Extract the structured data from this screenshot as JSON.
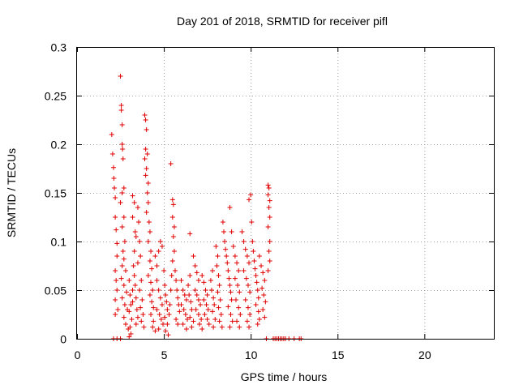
{
  "chart_data": {
    "type": "scatter",
    "title": "Day 201 of 2018, SRMTID for receiver pifl",
    "xlabel": "GPS time / hours",
    "ylabel": "SRMTID / TECUs",
    "xlim": [
      0,
      24
    ],
    "ylim": [
      0,
      0.3
    ],
    "xticks": [
      "0",
      "5",
      "10",
      "15",
      "20"
    ],
    "yticks": [
      "0",
      "0.05",
      "0.1",
      "0.15",
      "0.2",
      "0.25",
      "0.3"
    ],
    "grid": true,
    "marker": "plus",
    "color": "#e00000",
    "series": [
      {
        "points": [
          [
            2.1,
            0.0
          ],
          [
            2.3,
            0.0
          ],
          [
            2.5,
            0.0
          ],
          [
            10.9,
            0.0
          ],
          [
            11.3,
            0.0
          ],
          [
            11.4,
            0.0
          ],
          [
            11.5,
            0.0
          ],
          [
            11.6,
            0.0
          ],
          [
            11.7,
            0.0
          ],
          [
            11.8,
            0.0
          ],
          [
            11.9,
            0.0
          ],
          [
            12.0,
            0.0
          ],
          [
            12.2,
            0.0
          ],
          [
            12.5,
            0.0
          ],
          [
            12.8,
            0.0
          ],
          [
            12.9,
            0.0
          ],
          [
            2.0,
            0.21
          ],
          [
            2.05,
            0.19
          ],
          [
            2.1,
            0.176
          ],
          [
            2.12,
            0.165
          ],
          [
            2.15,
            0.155
          ],
          [
            2.2,
            0.145
          ],
          [
            2.2,
            0.125
          ],
          [
            2.25,
            0.112
          ],
          [
            2.3,
            0.098
          ],
          [
            2.3,
            0.085
          ],
          [
            2.2,
            0.07
          ],
          [
            2.25,
            0.06
          ],
          [
            2.3,
            0.05
          ],
          [
            2.2,
            0.04
          ],
          [
            2.35,
            0.03
          ],
          [
            2.2,
            0.025
          ],
          [
            2.5,
            0.27
          ],
          [
            2.55,
            0.24
          ],
          [
            2.55,
            0.235
          ],
          [
            2.6,
            0.22
          ],
          [
            2.6,
            0.2
          ],
          [
            2.62,
            0.195
          ],
          [
            2.65,
            0.185
          ],
          [
            2.7,
            0.155
          ],
          [
            2.6,
            0.15
          ],
          [
            2.5,
            0.14
          ],
          [
            2.7,
            0.125
          ],
          [
            2.6,
            0.115
          ],
          [
            2.75,
            0.1
          ],
          [
            2.65,
            0.09
          ],
          [
            2.7,
            0.082
          ],
          [
            2.6,
            0.075
          ],
          [
            2.8,
            0.07
          ],
          [
            2.55,
            0.062
          ],
          [
            2.7,
            0.055
          ],
          [
            2.85,
            0.048
          ],
          [
            2.6,
            0.042
          ],
          [
            2.75,
            0.035
          ],
          [
            2.9,
            0.03
          ],
          [
            2.7,
            0.022
          ],
          [
            2.8,
            0.015
          ],
          [
            2.95,
            0.01
          ],
          [
            3.0,
            0.06
          ],
          [
            3.05,
            0.045
          ],
          [
            3.1,
            0.035
          ],
          [
            3.0,
            0.028
          ],
          [
            3.15,
            0.02
          ],
          [
            3.05,
            0.012
          ],
          [
            3.1,
            0.005
          ],
          [
            3.0,
            0.002
          ],
          [
            3.2,
            0.05
          ],
          [
            3.2,
            0.038
          ],
          [
            3.25,
            0.075
          ],
          [
            3.3,
            0.09
          ],
          [
            3.35,
            0.11
          ],
          [
            3.2,
            0.125
          ],
          [
            3.4,
            0.105
          ],
          [
            3.3,
            0.065
          ],
          [
            3.35,
            0.055
          ],
          [
            3.4,
            0.042
          ],
          [
            3.45,
            0.03
          ],
          [
            3.5,
            0.022
          ],
          [
            3.4,
            0.015
          ],
          [
            3.2,
            0.147
          ],
          [
            3.3,
            0.14
          ],
          [
            3.5,
            0.135
          ],
          [
            3.55,
            0.12
          ],
          [
            3.6,
            0.1
          ],
          [
            3.65,
            0.085
          ],
          [
            3.5,
            0.078
          ],
          [
            3.7,
            0.06
          ],
          [
            3.6,
            0.05
          ],
          [
            3.75,
            0.04
          ],
          [
            3.65,
            0.032
          ],
          [
            3.8,
            0.025
          ],
          [
            3.7,
            0.018
          ],
          [
            3.85,
            0.012
          ],
          [
            3.9,
            0.23
          ],
          [
            3.95,
            0.225
          ],
          [
            4.0,
            0.215
          ],
          [
            3.95,
            0.195
          ],
          [
            4.05,
            0.19
          ],
          [
            3.9,
            0.185
          ],
          [
            4.0,
            0.175
          ],
          [
            3.95,
            0.168
          ],
          [
            4.1,
            0.16
          ],
          [
            4.05,
            0.15
          ],
          [
            4.1,
            0.14
          ],
          [
            4.0,
            0.13
          ],
          [
            4.15,
            0.12
          ],
          [
            4.2,
            0.11
          ],
          [
            4.1,
            0.1
          ],
          [
            4.25,
            0.09
          ],
          [
            4.2,
            0.08
          ],
          [
            4.3,
            0.072
          ],
          [
            4.1,
            0.065
          ],
          [
            4.25,
            0.058
          ],
          [
            4.35,
            0.05
          ],
          [
            4.2,
            0.045
          ],
          [
            4.3,
            0.038
          ],
          [
            4.4,
            0.032
          ],
          [
            4.25,
            0.025
          ],
          [
            4.4,
            0.018
          ],
          [
            4.35,
            0.012
          ],
          [
            4.5,
            0.008
          ],
          [
            4.5,
            0.085
          ],
          [
            4.6,
            0.075
          ],
          [
            4.7,
            0.09
          ],
          [
            4.8,
            0.1
          ],
          [
            4.9,
            0.095
          ],
          [
            4.6,
            0.06
          ],
          [
            4.7,
            0.05
          ],
          [
            4.8,
            0.042
          ],
          [
            4.9,
            0.035
          ],
          [
            4.6,
            0.03
          ],
          [
            4.75,
            0.025
          ],
          [
            4.85,
            0.02
          ],
          [
            4.95,
            0.015
          ],
          [
            4.7,
            0.01
          ],
          [
            5.0,
            0.07
          ],
          [
            5.05,
            0.055
          ],
          [
            5.1,
            0.045
          ],
          [
            5.15,
            0.038
          ],
          [
            5.2,
            0.03
          ],
          [
            5.05,
            0.022
          ],
          [
            5.2,
            0.015
          ],
          [
            5.1,
            0.008
          ],
          [
            5.25,
            0.004
          ],
          [
            5.3,
            0.025
          ],
          [
            5.35,
            0.035
          ],
          [
            5.4,
            0.05
          ],
          [
            5.45,
            0.065
          ],
          [
            5.5,
            0.08
          ],
          [
            5.4,
            0.18
          ],
          [
            5.5,
            0.143
          ],
          [
            5.55,
            0.138
          ],
          [
            5.5,
            0.125
          ],
          [
            5.6,
            0.115
          ],
          [
            5.55,
            0.105
          ],
          [
            5.6,
            0.09
          ],
          [
            5.65,
            0.07
          ],
          [
            5.7,
            0.06
          ],
          [
            5.75,
            0.05
          ],
          [
            5.8,
            0.042
          ],
          [
            5.85,
            0.035
          ],
          [
            5.9,
            0.028
          ],
          [
            5.7,
            0.02
          ],
          [
            5.8,
            0.015
          ],
          [
            6.0,
            0.06
          ],
          [
            6.1,
            0.05
          ],
          [
            6.2,
            0.045
          ],
          [
            6.3,
            0.04
          ],
          [
            6.0,
            0.035
          ],
          [
            6.15,
            0.03
          ],
          [
            6.25,
            0.025
          ],
          [
            6.35,
            0.02
          ],
          [
            6.1,
            0.015
          ],
          [
            6.3,
            0.01
          ],
          [
            6.4,
            0.055
          ],
          [
            6.5,
            0.065
          ],
          [
            6.45,
            0.045
          ],
          [
            6.55,
            0.038
          ],
          [
            6.6,
            0.03
          ],
          [
            6.5,
            0.022
          ],
          [
            6.7,
            0.018
          ],
          [
            6.6,
            0.012
          ],
          [
            6.5,
            0.108
          ],
          [
            6.7,
            0.085
          ],
          [
            6.8,
            0.075
          ],
          [
            6.9,
            0.068
          ],
          [
            7.0,
            0.06
          ],
          [
            6.8,
            0.05
          ],
          [
            6.9,
            0.045
          ],
          [
            7.0,
            0.04
          ],
          [
            7.1,
            0.035
          ],
          [
            6.85,
            0.03
          ],
          [
            7.0,
            0.025
          ],
          [
            7.15,
            0.02
          ],
          [
            7.05,
            0.015
          ],
          [
            7.2,
            0.01
          ],
          [
            7.2,
            0.065
          ],
          [
            7.3,
            0.058
          ],
          [
            7.4,
            0.05
          ],
          [
            7.5,
            0.045
          ],
          [
            7.3,
            0.04
          ],
          [
            7.45,
            0.035
          ],
          [
            7.55,
            0.03
          ],
          [
            7.35,
            0.025
          ],
          [
            7.5,
            0.02
          ],
          [
            7.6,
            0.015
          ],
          [
            7.7,
            0.06
          ],
          [
            7.8,
            0.07
          ],
          [
            7.75,
            0.05
          ],
          [
            7.85,
            0.042
          ],
          [
            7.9,
            0.035
          ],
          [
            7.8,
            0.028
          ],
          [
            7.95,
            0.02
          ],
          [
            7.85,
            0.012
          ],
          [
            8.0,
            0.095
          ],
          [
            8.1,
            0.085
          ],
          [
            8.05,
            0.075
          ],
          [
            8.15,
            0.065
          ],
          [
            8.2,
            0.055
          ],
          [
            8.1,
            0.048
          ],
          [
            8.25,
            0.04
          ],
          [
            8.15,
            0.032
          ],
          [
            8.3,
            0.025
          ],
          [
            8.2,
            0.018
          ],
          [
            8.35,
            0.012
          ],
          [
            8.4,
            0.12
          ],
          [
            8.45,
            0.11
          ],
          [
            8.5,
            0.1
          ],
          [
            8.55,
            0.092
          ],
          [
            8.6,
            0.085
          ],
          [
            8.65,
            0.078
          ],
          [
            8.7,
            0.07
          ],
          [
            8.75,
            0.062
          ],
          [
            8.8,
            0.055
          ],
          [
            8.85,
            0.048
          ],
          [
            8.9,
            0.04
          ],
          [
            8.7,
            0.033
          ],
          [
            8.85,
            0.025
          ],
          [
            8.95,
            0.018
          ],
          [
            8.8,
            0.012
          ],
          [
            8.8,
            0.135
          ],
          [
            8.9,
            0.11
          ],
          [
            9.0,
            0.095
          ],
          [
            9.1,
            0.085
          ],
          [
            9.2,
            0.078
          ],
          [
            9.3,
            0.07
          ],
          [
            9.1,
            0.062
          ],
          [
            9.25,
            0.055
          ],
          [
            9.35,
            0.048
          ],
          [
            9.15,
            0.04
          ],
          [
            9.3,
            0.032
          ],
          [
            9.4,
            0.025
          ],
          [
            9.2,
            0.018
          ],
          [
            9.35,
            0.012
          ],
          [
            9.5,
            0.11
          ],
          [
            9.6,
            0.1
          ],
          [
            9.7,
            0.092
          ],
          [
            9.8,
            0.085
          ],
          [
            9.9,
            0.078
          ],
          [
            9.6,
            0.07
          ],
          [
            9.75,
            0.062
          ],
          [
            9.85,
            0.055
          ],
          [
            9.95,
            0.048
          ],
          [
            9.7,
            0.04
          ],
          [
            9.85,
            0.032
          ],
          [
            9.95,
            0.025
          ],
          [
            9.8,
            0.018
          ],
          [
            9.9,
            0.012
          ],
          [
            9.9,
            0.143
          ],
          [
            10.0,
            0.148
          ],
          [
            10.05,
            0.12
          ],
          [
            10.1,
            0.1
          ],
          [
            10.15,
            0.09
          ],
          [
            10.2,
            0.08
          ],
          [
            10.25,
            0.072
          ],
          [
            10.3,
            0.065
          ],
          [
            10.35,
            0.058
          ],
          [
            10.4,
            0.05
          ],
          [
            10.45,
            0.042
          ],
          [
            10.3,
            0.035
          ],
          [
            10.45,
            0.028
          ],
          [
            10.5,
            0.02
          ],
          [
            10.4,
            0.015
          ],
          [
            10.5,
            0.085
          ],
          [
            10.6,
            0.075
          ],
          [
            10.7,
            0.068
          ],
          [
            10.8,
            0.06
          ],
          [
            10.65,
            0.052
          ],
          [
            10.75,
            0.045
          ],
          [
            10.85,
            0.038
          ],
          [
            10.7,
            0.03
          ],
          [
            10.8,
            0.022
          ],
          [
            11.0,
            0.158
          ],
          [
            11.05,
            0.155
          ],
          [
            11.0,
            0.148
          ],
          [
            11.1,
            0.142
          ],
          [
            11.05,
            0.135
          ],
          [
            11.1,
            0.125
          ],
          [
            11.0,
            0.115
          ],
          [
            11.1,
            0.1
          ],
          [
            11.05,
            0.09
          ],
          [
            11.1,
            0.08
          ],
          [
            11.0,
            0.07
          ]
        ]
      }
    ]
  }
}
